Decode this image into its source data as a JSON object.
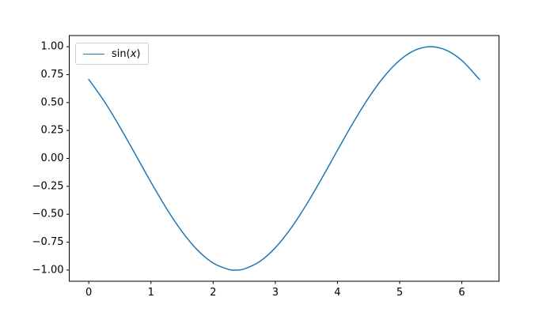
{
  "chart_data": {
    "type": "line",
    "title": "",
    "xlabel": "",
    "ylabel": "",
    "background": "#ffffff",
    "axis_color": "#000000",
    "grid": false,
    "xlim": [
      -0.3142,
      6.5974
    ],
    "ylim": [
      -1.1,
      1.1
    ],
    "xticks": {
      "values": [
        0,
        1,
        2,
        3,
        4,
        5,
        6
      ],
      "labels": [
        "0",
        "1",
        "2",
        "3",
        "4",
        "5",
        "6"
      ]
    },
    "yticks": {
      "values": [
        -1.0,
        -0.75,
        -0.5,
        -0.25,
        0.0,
        0.25,
        0.5,
        0.75,
        1.0
      ],
      "labels": [
        "−1.00",
        "−0.75",
        "−0.50",
        "−0.25",
        "0.00",
        "0.25",
        "0.50",
        "0.75",
        "1.00"
      ]
    },
    "legend": {
      "position": "upper left",
      "border_color": "#cccccc",
      "background": "rgba(255,255,255,0.8)",
      "entries": [
        {
          "label": "sin(x)",
          "label_prefix": "sin(",
          "label_var": "x",
          "label_suffix": ")",
          "color": "#1f77b4"
        }
      ]
    },
    "series": [
      {
        "name": "sin(x)",
        "color": "#1f77b4",
        "line_width": 1.5,
        "x": [
          0.0,
          0.25,
          0.5,
          0.75,
          1.0,
          1.25,
          1.5,
          1.75,
          2.0,
          2.25,
          2.3562,
          2.5,
          2.75,
          3.0,
          3.25,
          3.5,
          3.75,
          4.0,
          4.25,
          4.5,
          4.75,
          5.0,
          5.25,
          5.4978,
          5.75,
          6.0,
          6.2832
        ],
        "y": [
          0.7071,
          0.5102,
          0.2815,
          0.0354,
          -0.213,
          -0.4481,
          -0.6553,
          -0.8218,
          -0.9372,
          -0.9944,
          -1.0,
          -0.9897,
          -0.9234,
          -0.7998,
          -0.6265,
          -0.4141,
          -0.1761,
          0.0729,
          0.3174,
          0.5422,
          0.7332,
          0.8786,
          0.9695,
          1.0,
          0.9684,
          0.8765,
          0.7071
        ]
      }
    ]
  }
}
